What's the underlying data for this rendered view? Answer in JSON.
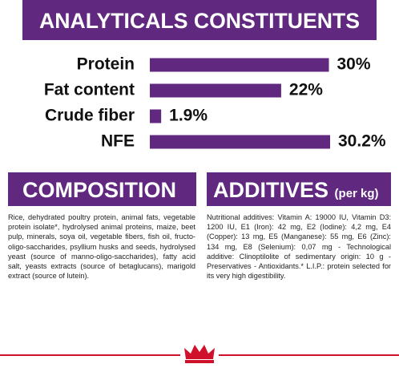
{
  "chart_data": {
    "type": "bar",
    "orientation": "horizontal",
    "title": "ANALYTICALS CONSTITUENTS",
    "categories": [
      "Protein",
      "Fat content",
      "Crude fiber",
      "NFE"
    ],
    "values": [
      30,
      22,
      1.9,
      30.2
    ],
    "value_labels": [
      "30%",
      "22%",
      "1.9%",
      "30.2%"
    ],
    "color": "#60287f"
  },
  "composition": {
    "title": "COMPOSITION",
    "text": "Rice, dehydrated poultry protein, animal fats, vegetable protein isolate*, hydrolysed animal proteins, maize, beet pulp, minerals, soya oil, vegetable fibers, fish oil, fructo-oligo-saccharides, psyllium husks and seeds, hydrolysed yeast (source of manno-oligo-saccharides), fatty acid salt, yeasts extracts (source of betaglucans), marigold extract (source of lutein)."
  },
  "additives": {
    "title": "ADDITIVES",
    "subtitle": "(per kg)",
    "text": "Nutritional additives: Vitamin A: 19000 IU, Vitamin D3: 1200 IU, E1 (Iron): 42 mg, E2 (Iodine): 4,2 mg, E4 (Copper): 13 mg, E5 (Manganese): 55 mg, E6 (Zinc): 134 mg, E8 (Selenium): 0,07 mg - Technological additive: Clinoptilolite of sedimentary origin: 10 g - Preservatives - Antioxidants.* L.I.P.: protein selected for its very high digestibility."
  }
}
